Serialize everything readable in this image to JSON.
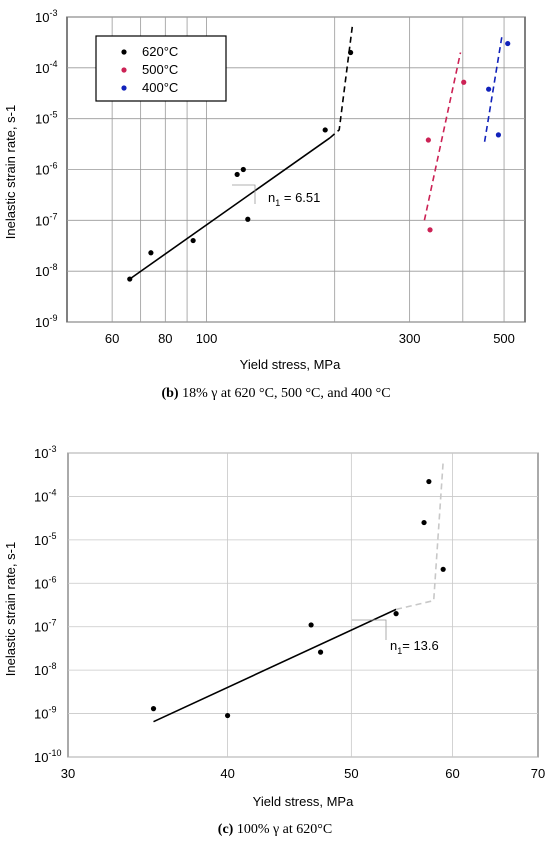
{
  "chart_data": [
    {
      "type": "scatter",
      "x_scale": "log",
      "y_scale": "log",
      "xlim": [
        47,
        560
      ],
      "ylim": [
        1e-09,
        0.001
      ],
      "xlabel": "Yield stress, MPa",
      "ylabel": "Inelastic strain rate, s-1",
      "x_tick_labels": [
        {
          "value": 60,
          "label": "60"
        },
        {
          "value": 80,
          "label": "80"
        },
        {
          "value": 100,
          "label": "100"
        },
        {
          "value": 300,
          "label": "300"
        },
        {
          "value": 500,
          "label": "500"
        }
      ],
      "x_grid": [
        60,
        70,
        80,
        90,
        100,
        200,
        300,
        400,
        500
      ],
      "y_tick_labels": [
        {
          "value": 0.001,
          "base": "10",
          "exp": "-3"
        },
        {
          "value": 0.0001,
          "base": "10",
          "exp": "-4"
        },
        {
          "value": 1e-05,
          "base": "10",
          "exp": "-5"
        },
        {
          "value": 1e-06,
          "base": "10",
          "exp": "-6"
        },
        {
          "value": 1e-07,
          "base": "10",
          "exp": "-7"
        },
        {
          "value": 1e-08,
          "base": "10",
          "exp": "-8"
        },
        {
          "value": 1e-09,
          "base": "10",
          "exp": "-9"
        }
      ],
      "grid": true,
      "legend_position": "top-left",
      "series": [
        {
          "name": "620°C",
          "color": "#000000",
          "points": [
            [
              66,
              7e-09
            ],
            [
              74,
              2.3e-08
            ],
            [
              93,
              4e-08
            ],
            [
              118,
              8e-07
            ],
            [
              122,
              1e-06
            ],
            [
              125,
              1.05e-07
            ],
            [
              190,
              6e-06
            ],
            [
              218,
              0.0002
            ]
          ],
          "fit_solid": [
            [
              66,
              7e-09
            ],
            [
              195,
              4.2e-06
            ]
          ],
          "fit_dashed": [
            [
              195,
              4.2e-06
            ],
            [
              205,
              6e-06
            ],
            [
              220,
              0.00065
            ]
          ]
        },
        {
          "name": "500°C",
          "color": "#cc2255",
          "points": [
            [
              332,
              3.8e-06
            ],
            [
              335,
              6.5e-08
            ],
            [
              402,
              5.2e-05
            ]
          ],
          "fit_dashed": [
            [
              325,
              1e-07
            ],
            [
              395,
              0.0002
            ]
          ]
        },
        {
          "name": "400°C",
          "color": "#1122bb",
          "points": [
            [
              460,
              3.8e-05
            ],
            [
              485,
              4.8e-06
            ],
            [
              510,
              0.0003
            ]
          ],
          "fit_dashed": [
            [
              450,
              3.5e-06
            ],
            [
              495,
              0.00045
            ]
          ]
        }
      ],
      "annotation": {
        "text_base": "n",
        "text_sub": "1",
        "text_rest": " = 6.51"
      },
      "caption": {
        "bold": "(b)",
        "rest": " 18% γ at 620 °C, 500 °C, and 400 °C"
      }
    },
    {
      "type": "scatter",
      "x_scale": "log",
      "y_scale": "log",
      "xlim": [
        30,
        70
      ],
      "ylim": [
        1e-10,
        0.001
      ],
      "xlabel": "Yield stress, MPa",
      "ylabel": "Inelastic strain rate, s-1",
      "x_tick_labels": [
        {
          "value": 30,
          "label": "30"
        },
        {
          "value": 40,
          "label": "40"
        },
        {
          "value": 50,
          "label": "50"
        },
        {
          "value": 60,
          "label": "60"
        },
        {
          "value": 70,
          "label": "70"
        }
      ],
      "x_grid": [
        40,
        50,
        60
      ],
      "y_tick_labels": [
        {
          "value": 0.001,
          "base": "10",
          "exp": "-3"
        },
        {
          "value": 0.0001,
          "base": "10",
          "exp": "-4"
        },
        {
          "value": 1e-05,
          "base": "10",
          "exp": "-5"
        },
        {
          "value": 1e-06,
          "base": "10",
          "exp": "-6"
        },
        {
          "value": 1e-07,
          "base": "10",
          "exp": "-7"
        },
        {
          "value": 1e-08,
          "base": "10",
          "exp": "-8"
        },
        {
          "value": 1e-09,
          "base": "10",
          "exp": "-9"
        },
        {
          "value": 1e-10,
          "base": "10",
          "exp": "-10"
        }
      ],
      "grid": true,
      "series": [
        {
          "name": "",
          "color": "#000000",
          "points": [
            [
              35,
              1.3e-09
            ],
            [
              40,
              9e-10
            ],
            [
              46.5,
              1.1e-07
            ],
            [
              47.3,
              2.6e-08
            ],
            [
              54.2,
              2e-07
            ],
            [
              57,
              2.5e-05
            ],
            [
              57.5,
              0.00022
            ],
            [
              59,
              2.1e-06
            ]
          ],
          "fit_solid": [
            [
              35,
              6.5e-10
            ],
            [
              54.2,
              2.5e-07
            ]
          ],
          "fit_dashed": [
            [
              54.2,
              2.5e-07
            ],
            [
              58,
              4e-07
            ],
            [
              59,
              0.00065
            ]
          ]
        }
      ],
      "annotation": {
        "text_base": "n",
        "text_sub": "1",
        "text_rest": "= 13.6"
      },
      "caption": {
        "bold": "(c)",
        "rest": " 100% γ at 620°C"
      }
    }
  ]
}
